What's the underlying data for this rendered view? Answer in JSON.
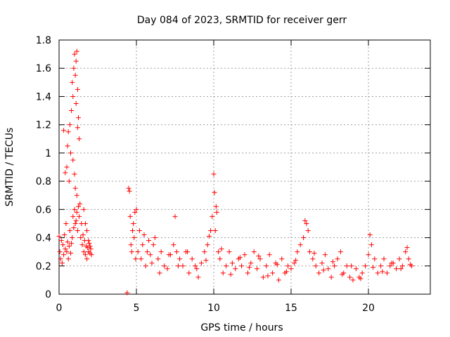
{
  "chart_data": {
    "type": "scatter",
    "title": "Day 084 of 2023, SRMTID for receiver gerr",
    "xlabel": "GPS time / hours",
    "ylabel": "SRMTID / TECUs",
    "xlim": [
      0,
      24
    ],
    "ylim": [
      0,
      1.8
    ],
    "x_ticks": [
      0,
      5,
      10,
      15,
      20
    ],
    "x_tick_labels": [
      "0",
      "5",
      "10",
      "15",
      "20"
    ],
    "y_ticks": [
      0,
      0.2,
      0.4,
      0.6,
      0.8,
      1.0,
      1.2,
      1.4,
      1.6,
      1.8
    ],
    "y_tick_labels": [
      "0",
      "0.2",
      "0.4",
      "0.6",
      "0.8",
      "1",
      "1.2",
      "1.4",
      "1.6",
      "1.8"
    ],
    "grid": true,
    "marker": "plus",
    "marker_color": "#ff0000",
    "series": [
      {
        "name": "SRMTID",
        "x": [
          0.0,
          0.05,
          0.1,
          0.15,
          0.2,
          0.25,
          0.3,
          0.35,
          0.4,
          0.45,
          0.5,
          0.55,
          0.6,
          0.65,
          0.7,
          0.75,
          0.8,
          0.85,
          0.9,
          0.95,
          1.0,
          1.05,
          1.1,
          1.15,
          1.2,
          1.25,
          1.3,
          1.35,
          1.4,
          1.45,
          1.5,
          1.55,
          1.6,
          1.65,
          1.7,
          1.75,
          1.8,
          1.85,
          1.9,
          1.95,
          2.0,
          2.05,
          2.1,
          0.5,
          0.55,
          0.6,
          0.65,
          0.7,
          0.75,
          0.8,
          0.85,
          0.9,
          0.95,
          1.0,
          1.05,
          1.1,
          1.15,
          1.2,
          1.25,
          1.3,
          0.9,
          1.0,
          1.05,
          1.1,
          1.15,
          1.2,
          0.3,
          0.4,
          1.6,
          1.7,
          1.8,
          1.9,
          2.0,
          4.4,
          4.5,
          4.55,
          4.6,
          4.65,
          4.7,
          4.75,
          4.8,
          4.85,
          4.9,
          4.95,
          5.0,
          5.1,
          5.2,
          5.3,
          5.4,
          5.5,
          5.6,
          5.7,
          5.8,
          5.9,
          6.0,
          6.2,
          6.4,
          6.6,
          6.8,
          7.0,
          7.2,
          7.4,
          7.5,
          7.6,
          7.8,
          8.0,
          8.2,
          8.4,
          8.6,
          8.8,
          9.0,
          9.2,
          9.4,
          9.6,
          9.8,
          9.9,
          10.0,
          10.05,
          10.1,
          10.2,
          10.3,
          10.4,
          10.6,
          10.8,
          11.0,
          11.2,
          11.4,
          11.6,
          11.8,
          12.0,
          12.2,
          12.4,
          12.6,
          12.8,
          13.0,
          13.2,
          13.4,
          13.6,
          13.8,
          14.0,
          14.2,
          14.4,
          14.6,
          14.8,
          15.0,
          15.2,
          15.4,
          15.6,
          15.8,
          15.9,
          16.0,
          16.1,
          16.2,
          16.4,
          16.6,
          16.8,
          17.0,
          17.2,
          17.4,
          17.6,
          17.8,
          18.0,
          18.2,
          18.4,
          18.6,
          18.8,
          19.0,
          19.2,
          19.4,
          19.6,
          19.8,
          20.0,
          20.1,
          20.2,
          20.4,
          20.6,
          20.8,
          21.0,
          21.2,
          21.4,
          21.6,
          21.8,
          22.0,
          22.2,
          22.4,
          22.5,
          22.6,
          22.8,
          6.1,
          6.5,
          7.1,
          7.7,
          8.3,
          8.9,
          9.5,
          10.5,
          11.1,
          11.7,
          12.3,
          12.9,
          13.5,
          14.1,
          14.7,
          15.3,
          16.5,
          17.1,
          17.7,
          18.3,
          18.9,
          19.5,
          20.3,
          20.9,
          21.5,
          22.1,
          22.7,
          9.7,
          10.15
        ],
        "y": [
          0.41,
          0.3,
          0.25,
          0.38,
          0.22,
          0.35,
          0.28,
          0.42,
          0.32,
          0.5,
          0.3,
          0.37,
          0.25,
          0.34,
          0.45,
          0.29,
          0.36,
          0.4,
          0.55,
          0.47,
          0.6,
          0.5,
          0.52,
          0.58,
          0.45,
          0.62,
          0.55,
          0.64,
          0.4,
          0.5,
          0.35,
          0.42,
          0.3,
          0.38,
          0.28,
          0.34,
          0.25,
          0.33,
          0.3,
          0.36,
          0.29,
          0.32,
          0.28,
          0.9,
          1.05,
          1.15,
          0.8,
          1.2,
          1.0,
          1.3,
          1.5,
          1.4,
          1.6,
          1.7,
          1.55,
          1.65,
          1.72,
          1.45,
          1.25,
          1.1,
          0.95,
          0.85,
          0.75,
          1.35,
          0.7,
          1.18,
          1.16,
          0.86,
          0.6,
          0.5,
          0.45,
          0.38,
          0.34,
          0.01,
          0.75,
          0.73,
          0.55,
          0.35,
          0.3,
          0.45,
          0.5,
          0.4,
          0.58,
          0.25,
          0.6,
          0.3,
          0.45,
          0.25,
          0.35,
          0.42,
          0.2,
          0.3,
          0.38,
          0.28,
          0.22,
          0.4,
          0.25,
          0.3,
          0.2,
          0.18,
          0.28,
          0.35,
          0.55,
          0.3,
          0.25,
          0.2,
          0.3,
          0.15,
          0.25,
          0.2,
          0.12,
          0.22,
          0.3,
          0.35,
          0.45,
          0.55,
          0.85,
          0.72,
          0.45,
          0.58,
          0.3,
          0.25,
          0.15,
          0.2,
          0.3,
          0.22,
          0.18,
          0.25,
          0.2,
          0.28,
          0.15,
          0.22,
          0.3,
          0.18,
          0.25,
          0.12,
          0.2,
          0.28,
          0.15,
          0.22,
          0.1,
          0.25,
          0.15,
          0.2,
          0.18,
          0.22,
          0.3,
          0.35,
          0.4,
          0.52,
          0.5,
          0.45,
          0.3,
          0.25,
          0.2,
          0.15,
          0.22,
          0.28,
          0.18,
          0.12,
          0.2,
          0.25,
          0.3,
          0.15,
          0.2,
          0.12,
          0.1,
          0.18,
          0.12,
          0.15,
          0.2,
          0.28,
          0.42,
          0.35,
          0.25,
          0.15,
          0.2,
          0.25,
          0.15,
          0.2,
          0.22,
          0.18,
          0.25,
          0.2,
          0.3,
          0.33,
          0.25,
          0.2,
          0.35,
          0.15,
          0.28,
          0.2,
          0.3,
          0.18,
          0.24,
          0.32,
          0.14,
          0.26,
          0.19,
          0.27,
          0.13,
          0.21,
          0.16,
          0.24,
          0.29,
          0.17,
          0.23,
          0.14,
          0.2,
          0.11,
          0.19,
          0.16,
          0.22,
          0.18,
          0.21,
          0.41,
          0.62
        ]
      }
    ]
  }
}
